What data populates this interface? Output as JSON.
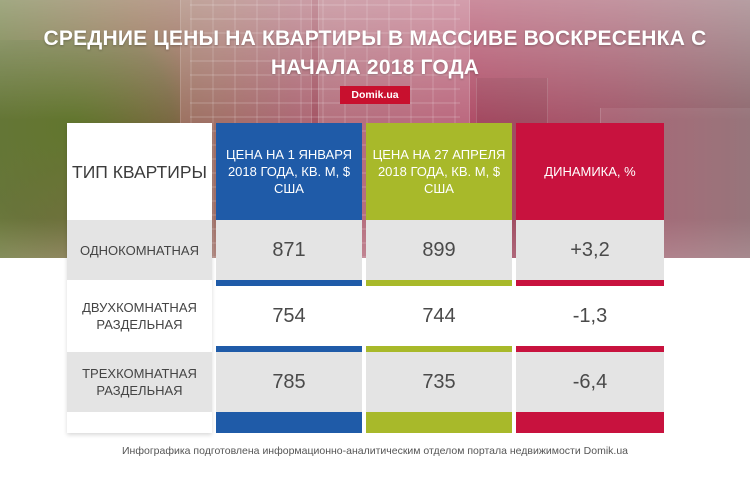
{
  "title": "СРЕДНИЕ ЦЕНЫ НА КВАРТИРЫ В МАССИВЕ ВОСКРЕСЕНКА С НАЧАЛА 2018 ГОДА",
  "badge": "Domik.ua",
  "colors": {
    "jan": "#1f5ba8",
    "apr": "#a8b92a",
    "dynamics": "#c8123e",
    "badge": "#c8102e"
  },
  "table": {
    "headers": {
      "type": "ТИП КВАРТИРЫ",
      "jan": "ЦЕНА НА 1 ЯНВАРЯ 2018 ГОДА, КВ. М, $ США",
      "apr": "ЦЕНА НА 27 АПРЕЛЯ 2018 ГОДА, КВ. М, $ США",
      "dynamics": "ДИНАМИКА, %"
    },
    "rows": [
      {
        "type": "ОДНОКОМНАТНАЯ",
        "jan": "871",
        "apr": "899",
        "dynamics": "+3,2"
      },
      {
        "type": "ДВУХКОМНАТНАЯ РАЗДЕЛЬНАЯ",
        "jan": "754",
        "apr": "744",
        "dynamics": "-1,3"
      },
      {
        "type": "ТРЕХКОМНАТНАЯ РАЗДЕЛЬНАЯ",
        "jan": "785",
        "apr": "735",
        "dynamics": "-6,4"
      }
    ]
  },
  "footer": "Инфографика подготовлена информационно-аналитическим отделом портала недвижимости Domik.ua"
}
